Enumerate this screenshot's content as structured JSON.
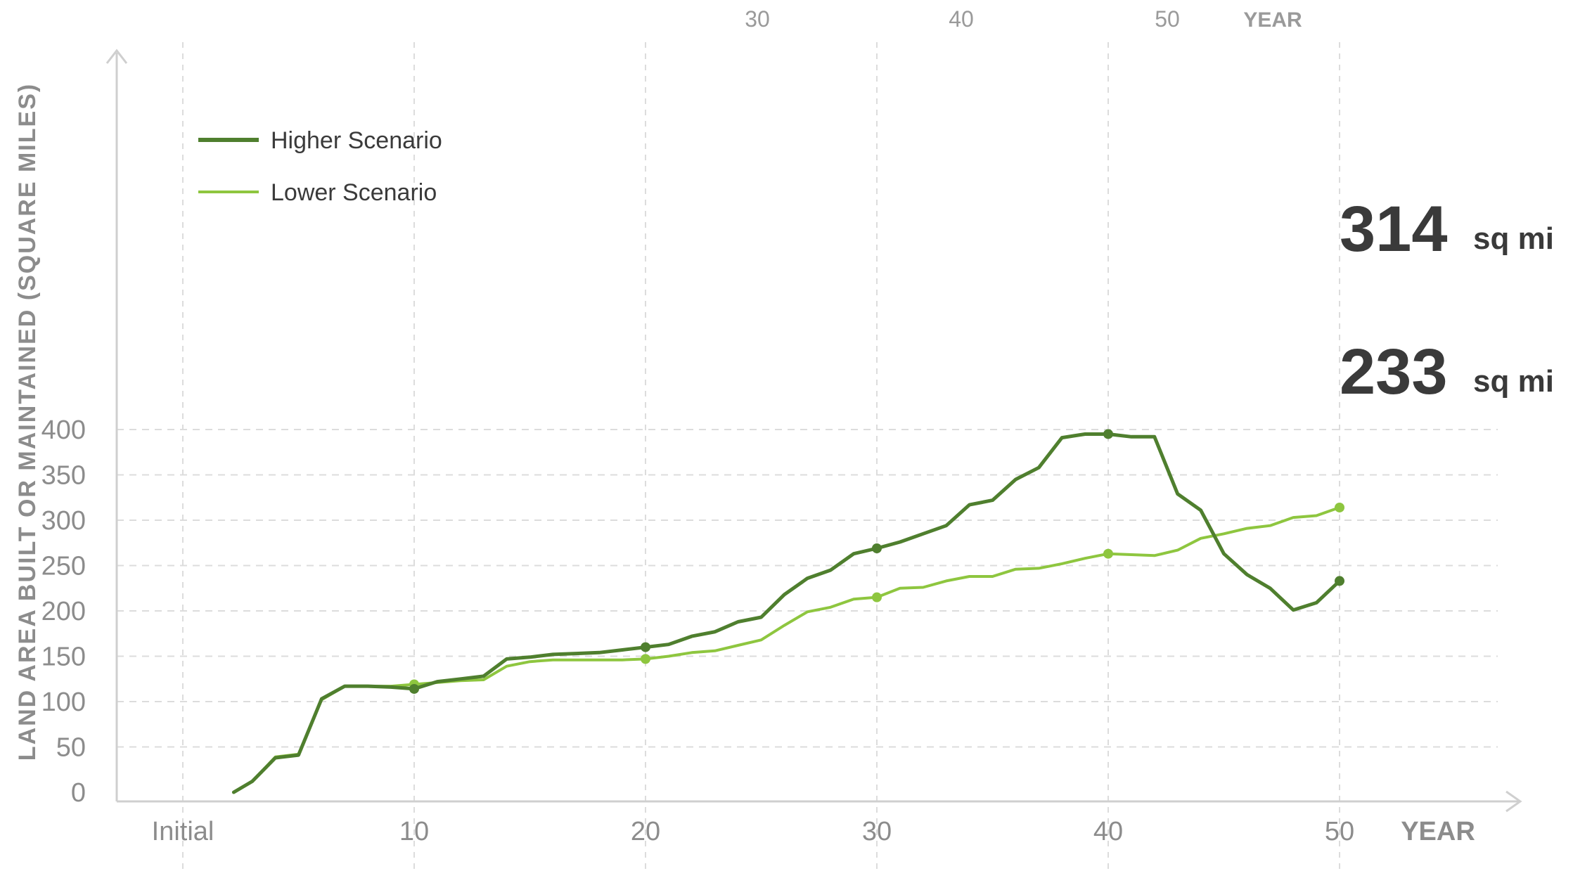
{
  "chart_data": {
    "type": "line",
    "title": "",
    "xlabel": "YEAR",
    "ylabel": "LAND AREA BUILT OR MAINTAINED (SQUARE MILES)",
    "xlim": [
      -1.5,
      55
    ],
    "ylim": [
      0,
      400
    ],
    "x_ticks": [
      {
        "value": 0,
        "label": "Initial"
      },
      {
        "value": 10,
        "label": "10"
      },
      {
        "value": 20,
        "label": "20"
      },
      {
        "value": 30,
        "label": "30"
      },
      {
        "value": 40,
        "label": "40"
      },
      {
        "value": 50,
        "label": "50"
      }
    ],
    "top_axis": {
      "ticks": [
        "30",
        "40",
        "50"
      ],
      "label": "YEAR"
    },
    "y_ticks": [
      0,
      50,
      100,
      150,
      200,
      250,
      300,
      350,
      400
    ],
    "grid": true,
    "legend_position": "top-left",
    "series": [
      {
        "name": "Higher Scenario",
        "color": "#4f7f2e",
        "x": [
          2.2,
          3,
          4,
          5,
          6,
          7,
          8,
          9,
          10,
          11,
          12,
          13,
          14,
          15,
          16,
          17,
          18,
          19,
          20,
          21,
          22,
          23,
          24,
          25,
          26,
          27,
          28,
          29,
          30,
          31,
          32,
          33,
          34,
          35,
          36,
          37,
          38,
          39,
          40,
          41,
          42,
          43,
          44,
          45,
          46,
          47,
          48,
          49,
          50
        ],
        "values": [
          0,
          12,
          38,
          41,
          103,
          117,
          117,
          116,
          114,
          122,
          125,
          128,
          147,
          149,
          152,
          153,
          154,
          157,
          160,
          163,
          172,
          177,
          188,
          193,
          218,
          236,
          245,
          263,
          269,
          276,
          285,
          294,
          317,
          322,
          345,
          358,
          391,
          395,
          395,
          392,
          392,
          329,
          311,
          263,
          240,
          225,
          201,
          209,
          233
        ],
        "markers_at": [
          10,
          20,
          30,
          40,
          50
        ],
        "end_label": "233",
        "end_unit": "sq mi"
      },
      {
        "name": "Lower Scenario",
        "color": "#8ec63f",
        "x": [
          2.2,
          3,
          4,
          5,
          6,
          7,
          8,
          9,
          10,
          11,
          12,
          13,
          14,
          15,
          16,
          17,
          18,
          19,
          20,
          21,
          22,
          23,
          24,
          25,
          26,
          27,
          28,
          29,
          30,
          31,
          32,
          33,
          34,
          35,
          36,
          37,
          38,
          39,
          40,
          41,
          42,
          43,
          44,
          45,
          46,
          47,
          48,
          49,
          50
        ],
        "values": [
          0,
          12,
          39,
          42,
          102,
          117,
          117,
          117,
          119,
          121,
          123,
          124,
          139,
          144,
          146,
          146,
          146,
          146,
          147,
          150,
          154,
          156,
          162,
          168,
          184,
          199,
          204,
          213,
          215,
          225,
          226,
          233,
          238,
          238,
          246,
          247,
          252,
          258,
          263,
          262,
          261,
          267,
          280,
          285,
          291,
          294,
          303,
          305,
          314
        ],
        "markers_at": [
          10,
          20,
          30,
          40,
          50
        ],
        "end_label": "314",
        "end_unit": "sq mi"
      }
    ]
  }
}
